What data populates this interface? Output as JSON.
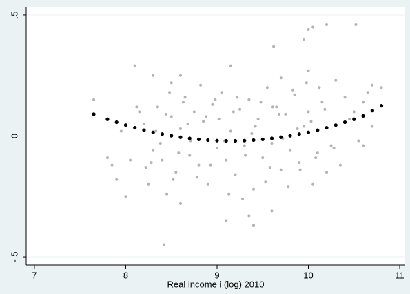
{
  "chart_data": {
    "type": "scatter",
    "xlabel": "Real income i (log) 2010",
    "xlim": [
      6.91,
      11.06
    ],
    "ylim": [
      -0.534,
      0.534
    ],
    "xticks": [
      7,
      8,
      9,
      10,
      11
    ],
    "yticks": [
      {
        "value": -0.5,
        "label": "-.5"
      },
      0,
      {
        "value": 0.5,
        "label": ".5"
      }
    ],
    "grid": true,
    "series": [
      {
        "color": "#b3b3b3",
        "x": [
          8.42,
          10.0,
          10.05,
          10.2,
          10.52,
          9.95,
          9.62,
          8.1,
          9.15,
          9.1,
          9.4,
          9.35,
          9.6,
          7.65,
          7.8,
          7.85,
          10.8,
          10.7,
          10.6,
          10.55,
          10.7,
          10.3,
          10.0,
          8.6,
          8.5,
          8.3,
          9.7,
          8.45,
          8.6,
          8.25,
          10.05,
          10.2,
          10.35,
          8.0,
          7.9,
          8.2,
          8.3,
          8.35,
          8.4,
          8.5,
          8.55,
          8.6,
          8.65,
          8.7,
          8.75,
          8.8,
          8.85,
          8.9,
          8.95,
          9.0,
          9.05,
          9.1,
          9.15,
          9.2,
          9.25,
          9.3,
          9.35,
          9.4,
          9.45,
          9.5,
          9.55,
          9.6,
          9.65,
          9.7,
          9.75,
          9.8,
          9.85,
          9.9,
          9.95,
          10.0,
          10.1,
          10.15,
          8.22,
          8.33,
          8.44,
          8.52,
          8.63,
          8.71,
          8.82,
          8.93,
          9.02,
          9.13,
          9.22,
          9.31,
          9.42,
          9.53,
          9.61,
          9.72,
          9.83,
          9.91,
          10.03,
          10.12,
          10.25,
          8.15,
          8.28,
          8.38,
          8.48,
          8.58,
          8.68,
          8.78,
          8.88,
          8.98,
          9.08,
          9.18,
          9.28,
          9.38,
          9.48,
          9.58,
          9.68,
          9.78,
          9.88,
          9.98,
          10.08,
          10.18,
          10.28,
          10.4,
          10.45,
          7.95,
          8.05,
          8.12,
          10.5,
          10.6,
          10.65
        ],
        "values": [
          -0.45,
          0.44,
          0.45,
          0.46,
          0.46,
          0.4,
          0.37,
          0.29,
          0.29,
          -0.35,
          -0.37,
          -0.33,
          -0.31,
          0.15,
          -0.09,
          -0.12,
          0.2,
          0.21,
          0.14,
          -0.02,
          0.04,
          0.23,
          0.27,
          0.25,
          0.22,
          0.25,
          0.24,
          -0.24,
          -0.28,
          -0.2,
          -0.2,
          -0.15,
          -0.12,
          -0.25,
          -0.18,
          0.05,
          -0.06,
          0.12,
          -0.1,
          0.08,
          -0.15,
          0.03,
          0.16,
          -0.08,
          0.1,
          -0.12,
          0.06,
          -0.2,
          0.13,
          -0.05,
          0.18,
          -0.1,
          0.02,
          -0.16,
          0.11,
          -0.04,
          0.15,
          -0.22,
          0.07,
          -0.09,
          0.2,
          -0.03,
          0.12,
          -0.14,
          0.09,
          -0.06,
          0.17,
          -0.11,
          0.04,
          0.1,
          -0.07,
          0.14,
          -0.13,
          0.02,
          0.09,
          -0.18,
          0.14,
          -0.02,
          0.21,
          -0.12,
          0.07,
          -0.24,
          0.16,
          -0.08,
          0.04,
          -0.19,
          0.12,
          -0.01,
          0.19,
          -0.14,
          0.06,
          0.2,
          -0.04,
          0.1,
          -0.11,
          -0.03,
          0.18,
          -0.07,
          0.05,
          -0.17,
          0.08,
          0.15,
          -0.02,
          0.1,
          -0.26,
          0.01,
          0.14,
          -0.13,
          0.09,
          -0.21,
          0.03,
          0.22,
          -0.09,
          0.11,
          -0.05,
          0.16,
          0.07,
          0.02,
          -0.1,
          0.12,
          0.1,
          -0.04,
          0.18
        ]
      },
      {
        "color": "#000000",
        "x": [
          7.65,
          7.8,
          7.9,
          8.0,
          8.1,
          8.2,
          8.3,
          8.4,
          8.5,
          8.6,
          8.7,
          8.8,
          8.9,
          9.0,
          9.1,
          9.2,
          9.3,
          9.4,
          9.5,
          9.6,
          9.7,
          9.8,
          9.9,
          10.0,
          10.1,
          10.2,
          10.3,
          10.4,
          10.5,
          10.6,
          10.7,
          10.8
        ],
        "values": [
          0.09,
          0.069,
          0.057,
          0.045,
          0.034,
          0.024,
          0.015,
          0.008,
          0.001,
          -0.005,
          -0.01,
          -0.014,
          -0.017,
          -0.019,
          -0.02,
          -0.02,
          -0.019,
          -0.017,
          -0.014,
          -0.01,
          -0.005,
          0.001,
          0.008,
          0.015,
          0.024,
          0.034,
          0.045,
          0.057,
          0.069,
          0.083,
          0.105,
          0.125
        ]
      }
    ]
  }
}
